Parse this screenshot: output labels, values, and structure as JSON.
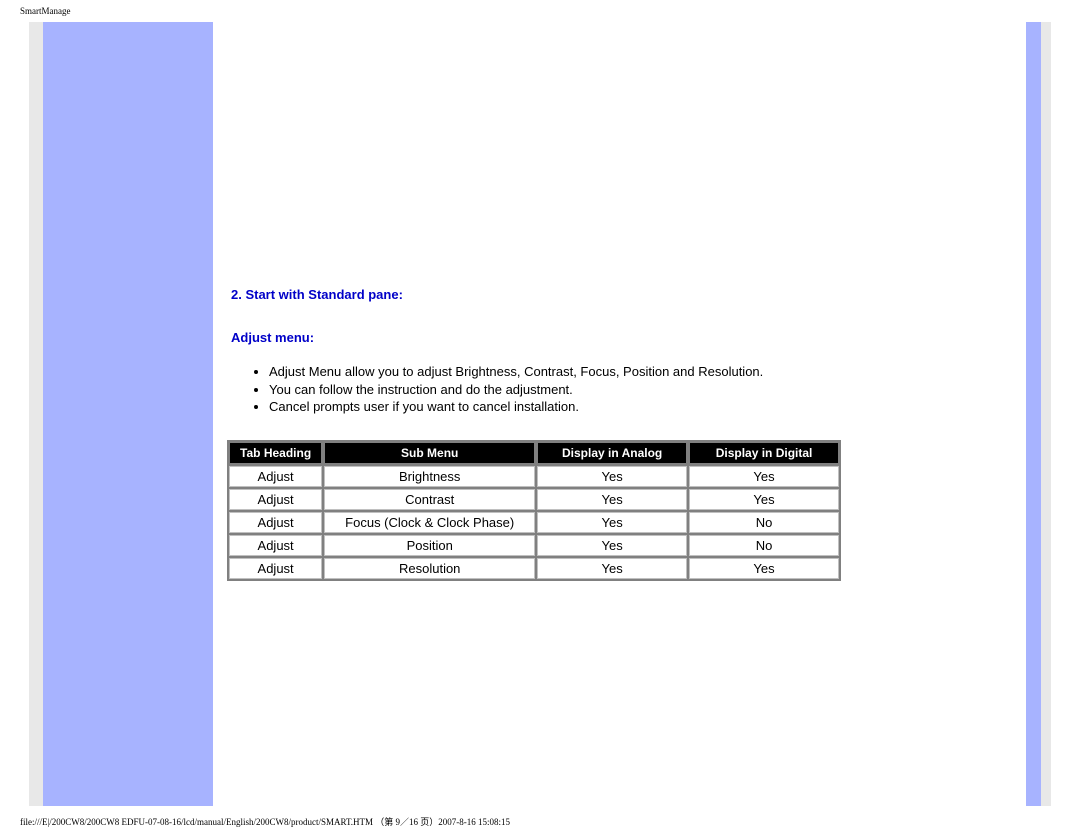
{
  "header": {
    "title": "SmartManage"
  },
  "section": {
    "heading": "2. Start with Standard pane:",
    "subheading": "Adjust menu:",
    "bullets": [
      "Adjust Menu allow you to adjust Brightness, Contrast, Focus, Position and Resolution.",
      "You can follow the instruction and do the adjustment.",
      "Cancel prompts user if you want to cancel installation."
    ]
  },
  "table": {
    "columns": [
      "Tab Heading",
      "Sub Menu",
      "Display in Analog",
      "Display in Digital"
    ],
    "rows": [
      [
        "Adjust",
        "Brightness",
        "Yes",
        "Yes"
      ],
      [
        "Adjust",
        "Contrast",
        "Yes",
        "Yes"
      ],
      [
        "Adjust",
        "Focus (Clock & Clock Phase)",
        "Yes",
        "No"
      ],
      [
        "Adjust",
        "Position",
        "Yes",
        "No"
      ],
      [
        "Adjust",
        "Resolution",
        "Yes",
        "Yes"
      ]
    ]
  },
  "footer": {
    "text": "file:///E|/200CW8/200CW8 EDFU-07-08-16/lcd/manual/English/200CW8/product/SMART.HTM （第 9／16 页）2007-8-16 15:08:15"
  },
  "colors": {
    "stripe": "#a7b3ff",
    "heading": "#0000c8",
    "th_bg": "#000000",
    "th_fg": "#ffffff",
    "cell_bg": "#ffffff",
    "grid": "#808080"
  }
}
